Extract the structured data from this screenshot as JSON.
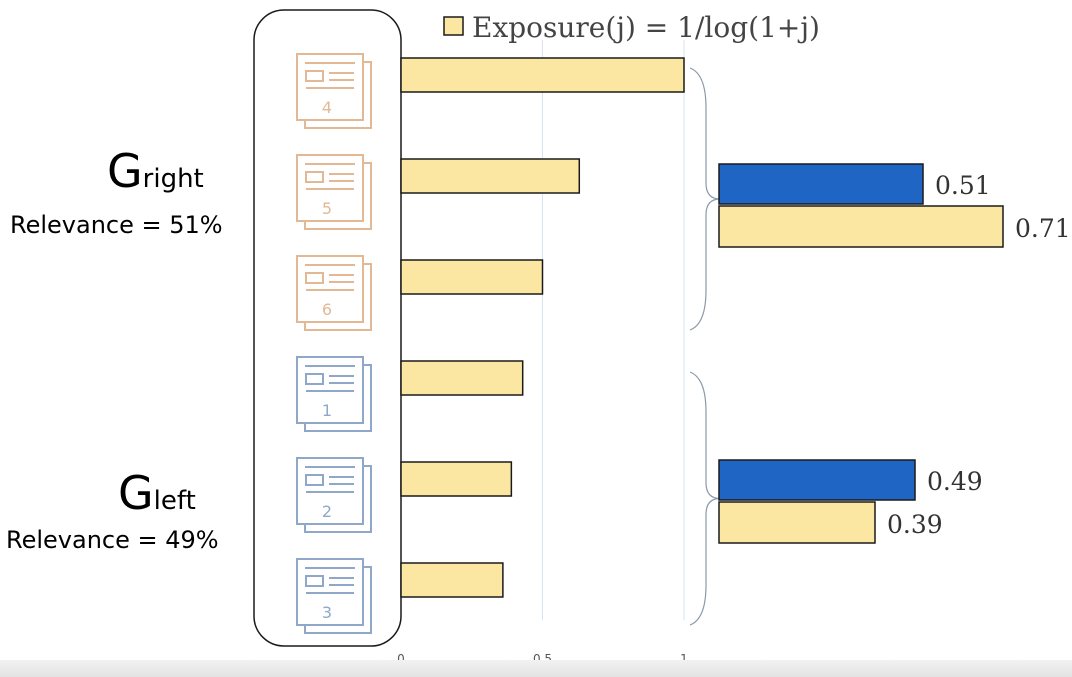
{
  "chart_data": {
    "type": "bar",
    "legend": {
      "label": "Exposure(j) = 1/log(1+j)",
      "color": "#fbe6a2",
      "placement": "top"
    },
    "exposure": {
      "categories": [
        "4",
        "5",
        "6",
        "1",
        "2",
        "3"
      ],
      "values": [
        1.0,
        0.63,
        0.5,
        0.43,
        0.39,
        0.36
      ],
      "xlim": [
        0,
        1
      ],
      "xticks": [
        {
          "value": 0,
          "label": "0"
        },
        {
          "value": 0.5,
          "label": "0.5"
        },
        {
          "value": 1,
          "label": "1"
        }
      ]
    },
    "groups": [
      {
        "key": "right",
        "main": "G",
        "sub": "right",
        "relevance_label": "Relevance = 51%",
        "relevance_value": 0.51,
        "exposure_value": 0.71,
        "relevance_text": "0.51",
        "exposure_text": "0.71",
        "group_color": "#e3b995"
      },
      {
        "key": "left",
        "main": "G",
        "sub": "left",
        "relevance_label": "Relevance = 49%",
        "relevance_value": 0.49,
        "exposure_value": 0.39,
        "relevance_text": "0.49",
        "exposure_text": "0.39",
        "group_color": "#8fa8c9"
      }
    ],
    "colors": {
      "exposure": "#fbe6a2",
      "relevance": "#1f66c4",
      "bar_border": "#1a1a1a",
      "gridline": "#d6e3f0"
    }
  }
}
